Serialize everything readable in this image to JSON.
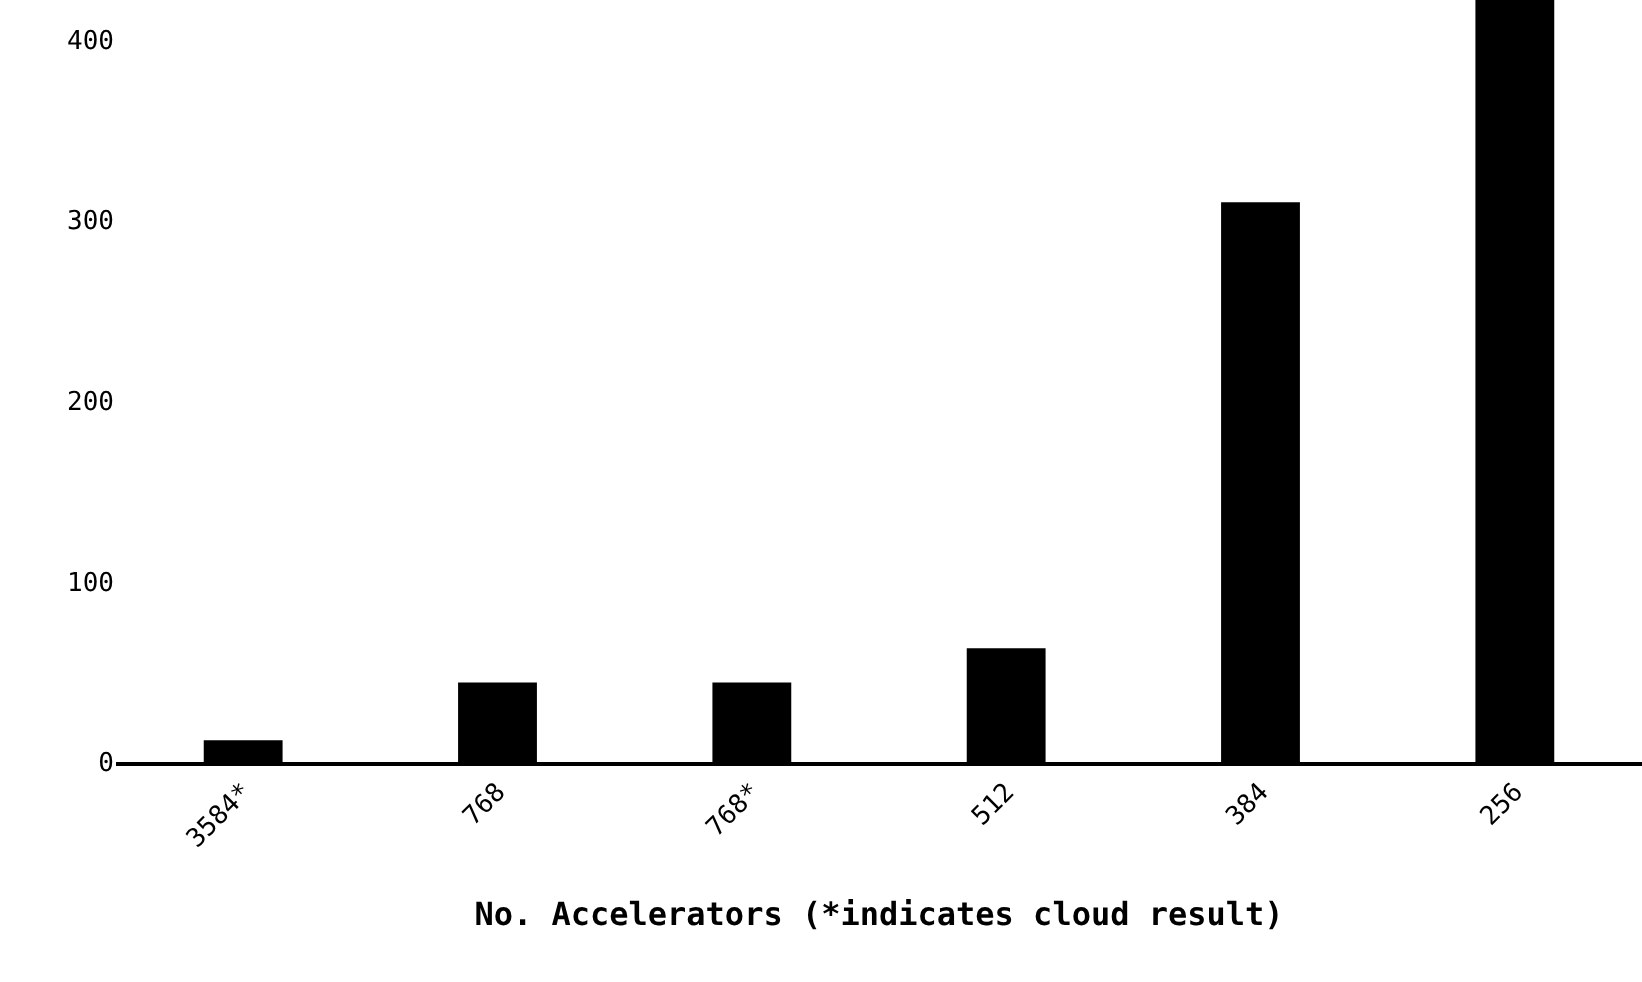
{
  "chart_data": {
    "type": "bar",
    "xlabel": "No. Accelerators (*indicates cloud result)",
    "categories": [
      "3584*",
      "768",
      "768*",
      "512",
      "384",
      "256"
    ],
    "values": [
      12,
      44,
      44,
      63,
      310,
      422
    ],
    "color": "#000000",
    "ylim": [
      0,
      422
    ],
    "yticks": [
      0,
      100,
      200,
      300,
      400
    ]
  }
}
